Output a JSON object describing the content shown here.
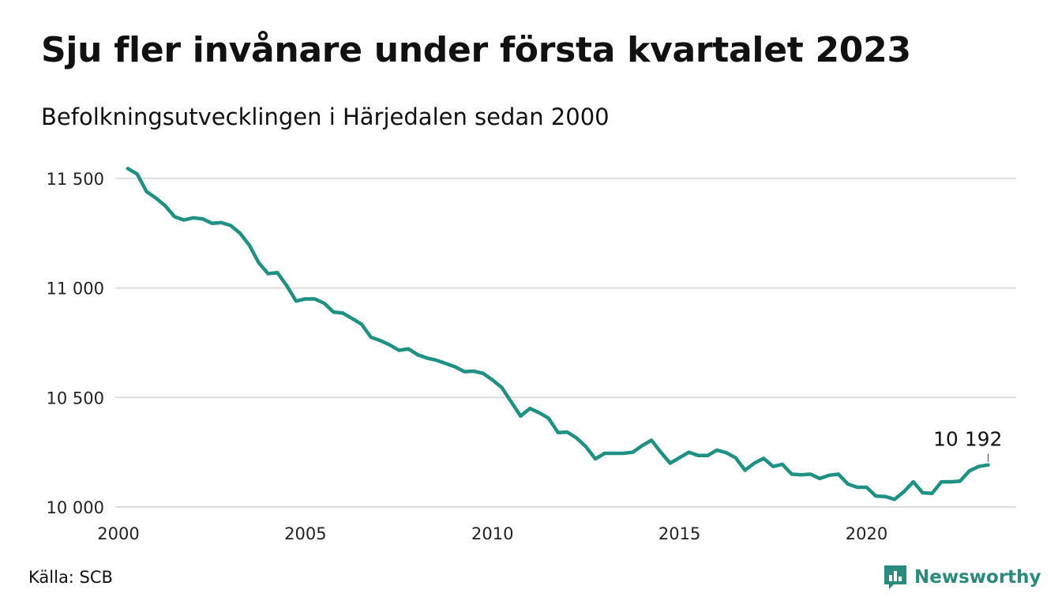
{
  "title": "Sju fler invånare under första kvartalet 2023",
  "subtitle": "Befolkningsutvecklingen i Härjedalen sedan 2000",
  "source": "Källa: SCB",
  "brand": {
    "name": "Newsworthy",
    "icon": "newsworthy-logo-icon",
    "color": "#2a8a7c"
  },
  "chart_data": {
    "type": "line",
    "title": "Sju fler invånare under första kvartalet 2023",
    "subtitle": "Befolkningsutvecklingen i Härjedalen sedan 2000",
    "x_range": [
      2000,
      2023.25
    ],
    "ylim": [
      10000,
      11550
    ],
    "x_ticks": [
      2000,
      2005,
      2010,
      2015,
      2020
    ],
    "x_tick_labels": [
      "2000",
      "2005",
      "2010",
      "2015",
      "2020"
    ],
    "y_ticks": [
      10000,
      10500,
      11000,
      11500
    ],
    "y_tick_labels": [
      "10 000",
      "10 500",
      "11 000",
      "11 500"
    ],
    "grid": "horizontal",
    "line_color": "#1e9184",
    "end_label": "10 192",
    "series": [
      {
        "x": [
          2000.25,
          2000.5,
          2000.75,
          2001,
          2001.25,
          2001.5,
          2001.75,
          2002,
          2002.25,
          2002.5,
          2002.75,
          2003,
          2003.25,
          2003.5,
          2003.75,
          2004,
          2004.25,
          2004.5,
          2004.75,
          2005,
          2005.25,
          2005.5,
          2005.75,
          2006,
          2006.25,
          2006.5,
          2006.75,
          2007,
          2007.25,
          2007.5,
          2007.75,
          2008,
          2008.25,
          2008.5,
          2008.75,
          2009,
          2009.25,
          2009.5,
          2009.75,
          2010,
          2010.25,
          2010.5,
          2010.75,
          2011,
          2011.25,
          2011.5,
          2011.75,
          2012,
          2012.25,
          2012.5,
          2012.75,
          2013,
          2013.25,
          2013.5,
          2013.75,
          2014,
          2014.25,
          2014.5,
          2014.75,
          2015,
          2015.25,
          2015.5,
          2015.75,
          2016,
          2016.25,
          2016.5,
          2016.75,
          2017,
          2017.25,
          2017.5,
          2017.75,
          2018,
          2018.25,
          2018.5,
          2018.75,
          2019,
          2019.25,
          2019.5,
          2019.75,
          2020,
          2020.25,
          2020.5,
          2020.75,
          2021,
          2021.25,
          2021.5,
          2021.75,
          2022,
          2022.25,
          2022.5,
          2022.75,
          2023,
          2023.25
        ],
        "values": [
          11545,
          11520,
          11440,
          11410,
          11375,
          11325,
          11310,
          11320,
          11315,
          11295,
          11298,
          11285,
          11250,
          11195,
          11115,
          11065,
          11070,
          11010,
          10940,
          10950,
          10950,
          10930,
          10890,
          10885,
          10860,
          10835,
          10775,
          10760,
          10740,
          10715,
          10722,
          10695,
          10680,
          10670,
          10655,
          10640,
          10618,
          10620,
          10610,
          10580,
          10545,
          10480,
          10415,
          10450,
          10430,
          10405,
          10340,
          10342,
          10315,
          10275,
          10220,
          10245,
          10245,
          10245,
          10250,
          10280,
          10305,
          10250,
          10200,
          10225,
          10250,
          10235,
          10235,
          10260,
          10248,
          10225,
          10168,
          10200,
          10222,
          10185,
          10195,
          10150,
          10147,
          10150,
          10130,
          10145,
          10150,
          10105,
          10090,
          10090,
          10050,
          10048,
          10035,
          10070,
          10115,
          10065,
          10062,
          10115,
          10115,
          10118,
          10165,
          10185,
          10192
        ]
      }
    ]
  }
}
